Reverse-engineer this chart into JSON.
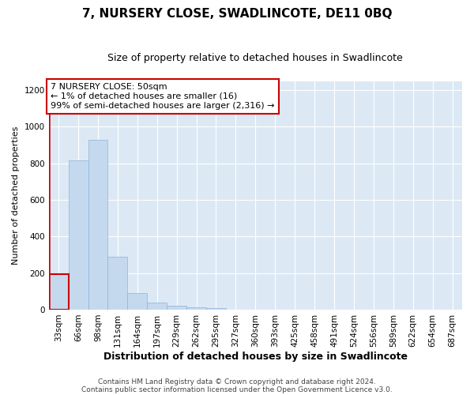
{
  "title": "7, NURSERY CLOSE, SWADLINCOTE, DE11 0BQ",
  "subtitle": "Size of property relative to detached houses in Swadlincote",
  "xlabel": "Distribution of detached houses by size in Swadlincote",
  "ylabel": "Number of detached properties",
  "categories": [
    "33sqm",
    "66sqm",
    "98sqm",
    "131sqm",
    "164sqm",
    "197sqm",
    "229sqm",
    "262sqm",
    "295sqm",
    "327sqm",
    "360sqm",
    "393sqm",
    "425sqm",
    "458sqm",
    "491sqm",
    "524sqm",
    "556sqm",
    "589sqm",
    "622sqm",
    "654sqm",
    "687sqm"
  ],
  "values": [
    195,
    815,
    930,
    290,
    90,
    38,
    20,
    13,
    10,
    0,
    0,
    0,
    0,
    0,
    0,
    0,
    0,
    0,
    0,
    0,
    0
  ],
  "bar_color": "#c5d9ee",
  "bar_edge_color": "#89b4d9",
  "highlight_bar_index": 0,
  "highlight_color": "#cc0000",
  "annotation_line1": "7 NURSERY CLOSE: 50sqm",
  "annotation_line2": "← 1% of detached houses are smaller (16)",
  "annotation_line3": "99% of semi-detached houses are larger (2,316) →",
  "annotation_box_color": "#cc0000",
  "ylim": [
    0,
    1250
  ],
  "yticks": [
    0,
    200,
    400,
    600,
    800,
    1000,
    1200
  ],
  "background_color": "#dce9f5",
  "grid_color": "#ffffff",
  "fig_background": "#ffffff",
  "footer_line1": "Contains HM Land Registry data © Crown copyright and database right 2024.",
  "footer_line2": "Contains public sector information licensed under the Open Government Licence v3.0.",
  "title_fontsize": 11,
  "subtitle_fontsize": 9,
  "xlabel_fontsize": 9,
  "ylabel_fontsize": 8,
  "tick_fontsize": 7.5,
  "footer_fontsize": 6.5,
  "annot_fontsize": 8
}
